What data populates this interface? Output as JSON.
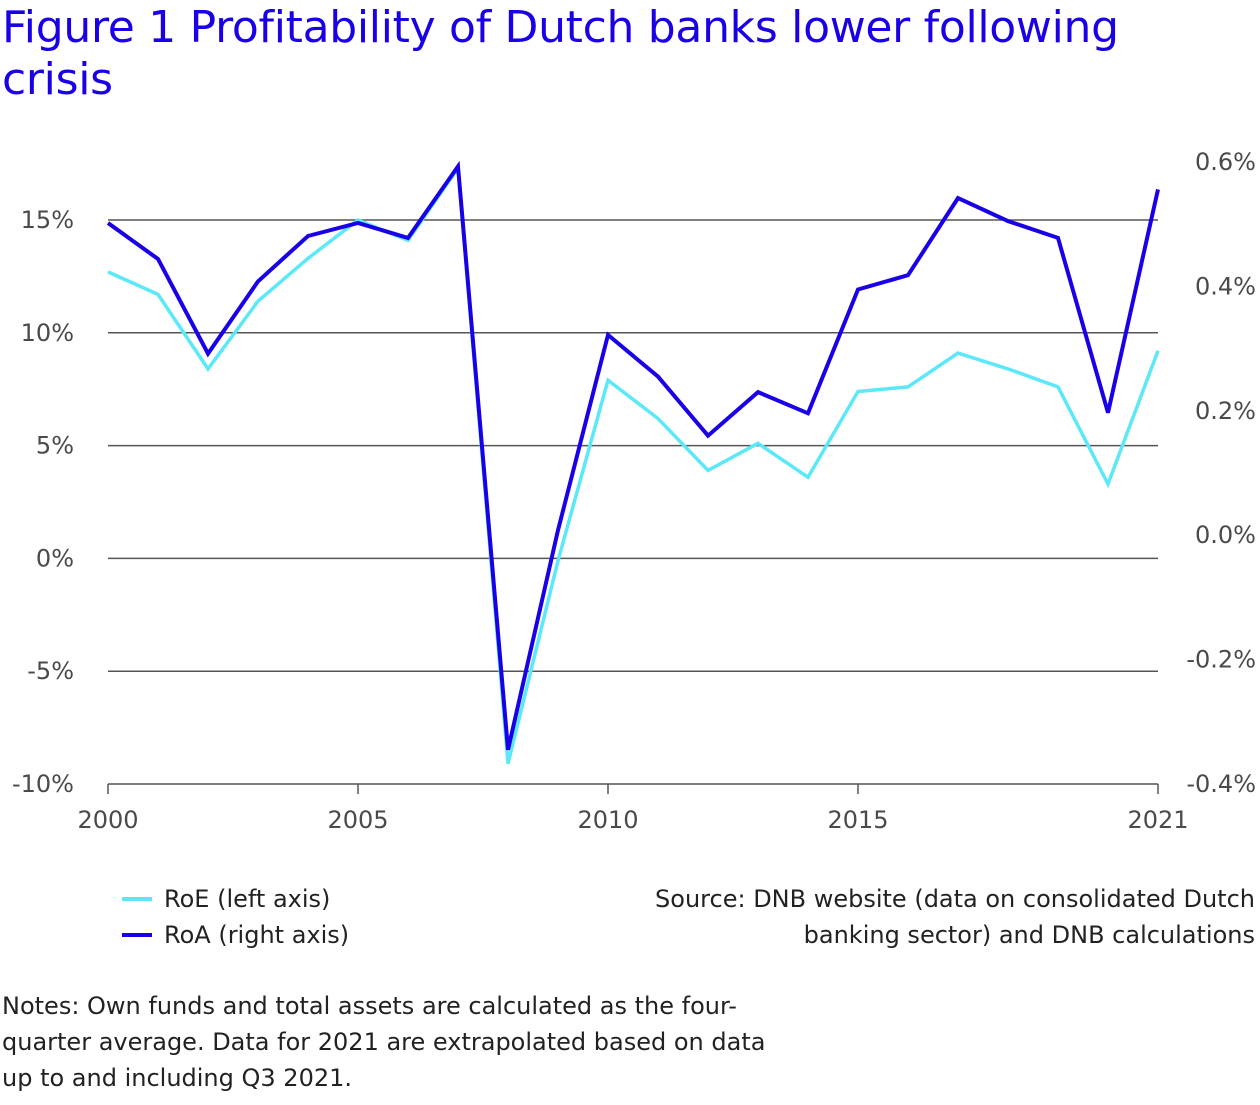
{
  "title": "Figure 1  Profitability of Dutch banks lower following crisis",
  "legend": {
    "roe_label": "RoE (left axis)",
    "roa_label": "RoA (right axis)"
  },
  "source": "Source: DNB website (data on consolidated Dutch banking sector) and DNB calculations",
  "notes": "Notes: Own funds and total assets are calculated as the four-quarter average. Data for 2021 are extrapolated based on data up to and including Q3 2021.",
  "colors": {
    "roe": "#5be8f8",
    "roa": "#1a00e6",
    "grid": "#555555"
  },
  "chart_data": {
    "type": "line",
    "title": "Figure 1  Profitability of Dutch banks lower following crisis",
    "x": [
      2000,
      2001,
      2002,
      2003,
      2004,
      2005,
      2006,
      2007,
      2008,
      2009,
      2010,
      2011,
      2012,
      2013,
      2014,
      2015,
      2016,
      2017,
      2018,
      2019,
      2020,
      2021
    ],
    "xlim": [
      2000,
      2021
    ],
    "x_ticks": [
      "2000",
      "2005",
      "2010",
      "2015",
      "2021"
    ],
    "x_tick_values": [
      2000,
      2005,
      2010,
      2015,
      2021
    ],
    "y_left_lim": [
      -10,
      15
    ],
    "y_left_ticks": [
      "-10%",
      "-5%",
      "0%",
      "5%",
      "10%",
      "15%"
    ],
    "y_left_tick_values": [
      -10,
      -5,
      0,
      5,
      10,
      15
    ],
    "y_right_lim": [
      -0.4,
      0.6
    ],
    "y_right_ticks": [
      "-0.4%",
      "-0.2%",
      "0.0%",
      "0.2%",
      "0.4%",
      "0.6%"
    ],
    "y_right_tick_values": [
      -0.4,
      -0.2,
      0.0,
      0.2,
      0.4,
      0.6
    ],
    "grid": true,
    "legend_position": "bottom-left",
    "series": [
      {
        "name": "RoE (left axis)",
        "axis": "left",
        "values": [
          12.7,
          11.7,
          8.4,
          11.4,
          13.3,
          15.0,
          14.1,
          17.3,
          -9.1,
          -0.1,
          7.9,
          6.2,
          3.9,
          5.1,
          3.6,
          7.4,
          7.6,
          9.1,
          8.4,
          7.6,
          3.3,
          9.2
        ]
      },
      {
        "name": "RoA (right axis)",
        "axis": "right",
        "values": [
          0.502,
          0.444,
          0.292,
          0.408,
          0.481,
          0.502,
          0.478,
          0.593,
          -0.345,
          0.008,
          0.322,
          0.255,
          0.16,
          0.23,
          0.196,
          0.395,
          0.418,
          0.542,
          0.505,
          0.478,
          0.197,
          0.556
        ]
      }
    ]
  }
}
